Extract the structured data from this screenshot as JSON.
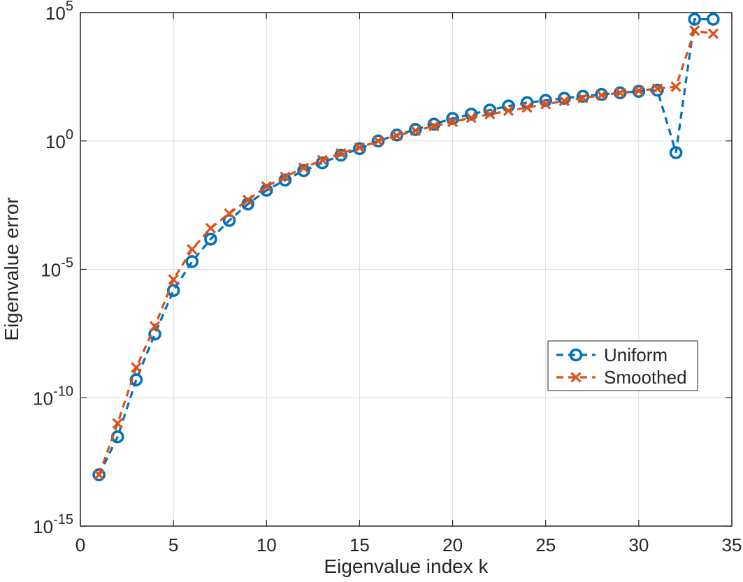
{
  "chart_data": {
    "type": "line",
    "title": "",
    "xlabel": "Eigenvalue index k",
    "ylabel": "Eigenvalue error",
    "xscale": "linear",
    "yscale": "log",
    "xlim": [
      0,
      35
    ],
    "ylim": [
      1e-15,
      100000
    ],
    "grid": true,
    "x_ticks": [
      0,
      5,
      10,
      15,
      20,
      25,
      30,
      35
    ],
    "y_ticks": [
      {
        "value": 1e-15,
        "base": "10",
        "exponent": "-15"
      },
      {
        "value": 1e-10,
        "base": "10",
        "exponent": "-10"
      },
      {
        "value": 1e-05,
        "base": "10",
        "exponent": "-5"
      },
      {
        "value": 1,
        "base": "10",
        "exponent": "0"
      },
      {
        "value": 100000,
        "base": "10",
        "exponent": "5"
      }
    ],
    "legend_position": "right-middle",
    "series": [
      {
        "name": "Uniform",
        "color": "#0072BD",
        "marker": "circle",
        "line_style": "dashed",
        "x": [
          1,
          2,
          3,
          4,
          5,
          6,
          7,
          8,
          9,
          10,
          11,
          12,
          13,
          14,
          15,
          16,
          17,
          18,
          19,
          20,
          21,
          22,
          23,
          24,
          25,
          26,
          27,
          28,
          29,
          30,
          31,
          32,
          33,
          34
        ],
        "values": [
          1e-13,
          3e-12,
          5e-10,
          3e-08,
          1.5e-06,
          2e-05,
          0.00015,
          0.0008,
          0.0035,
          0.012,
          0.03,
          0.07,
          0.14,
          0.28,
          0.5,
          1.0,
          1.7,
          2.8,
          4.5,
          7.5,
          11,
          16,
          23,
          31,
          38,
          46,
          55,
          65,
          75,
          85,
          95,
          0.35,
          55000,
          55000
        ]
      },
      {
        "name": "Smoothed",
        "color": "#D95319",
        "marker": "x",
        "line_style": "dashed",
        "x": [
          1,
          2,
          3,
          4,
          5,
          6,
          7,
          8,
          9,
          10,
          11,
          12,
          13,
          14,
          15,
          16,
          17,
          18,
          19,
          20,
          21,
          22,
          23,
          24,
          25,
          26,
          27,
          28,
          29,
          30,
          31,
          32,
          33,
          34
        ],
        "values": [
          1e-13,
          1e-11,
          1.5e-09,
          6e-08,
          4e-06,
          6e-05,
          0.0004,
          0.0015,
          0.005,
          0.017,
          0.04,
          0.09,
          0.18,
          0.33,
          0.55,
          1.0,
          1.6,
          2.5,
          3.8,
          5.5,
          8,
          11,
          15,
          20,
          27,
          36,
          47,
          60,
          75,
          90,
          110,
          130,
          20000,
          15000
        ]
      }
    ]
  }
}
